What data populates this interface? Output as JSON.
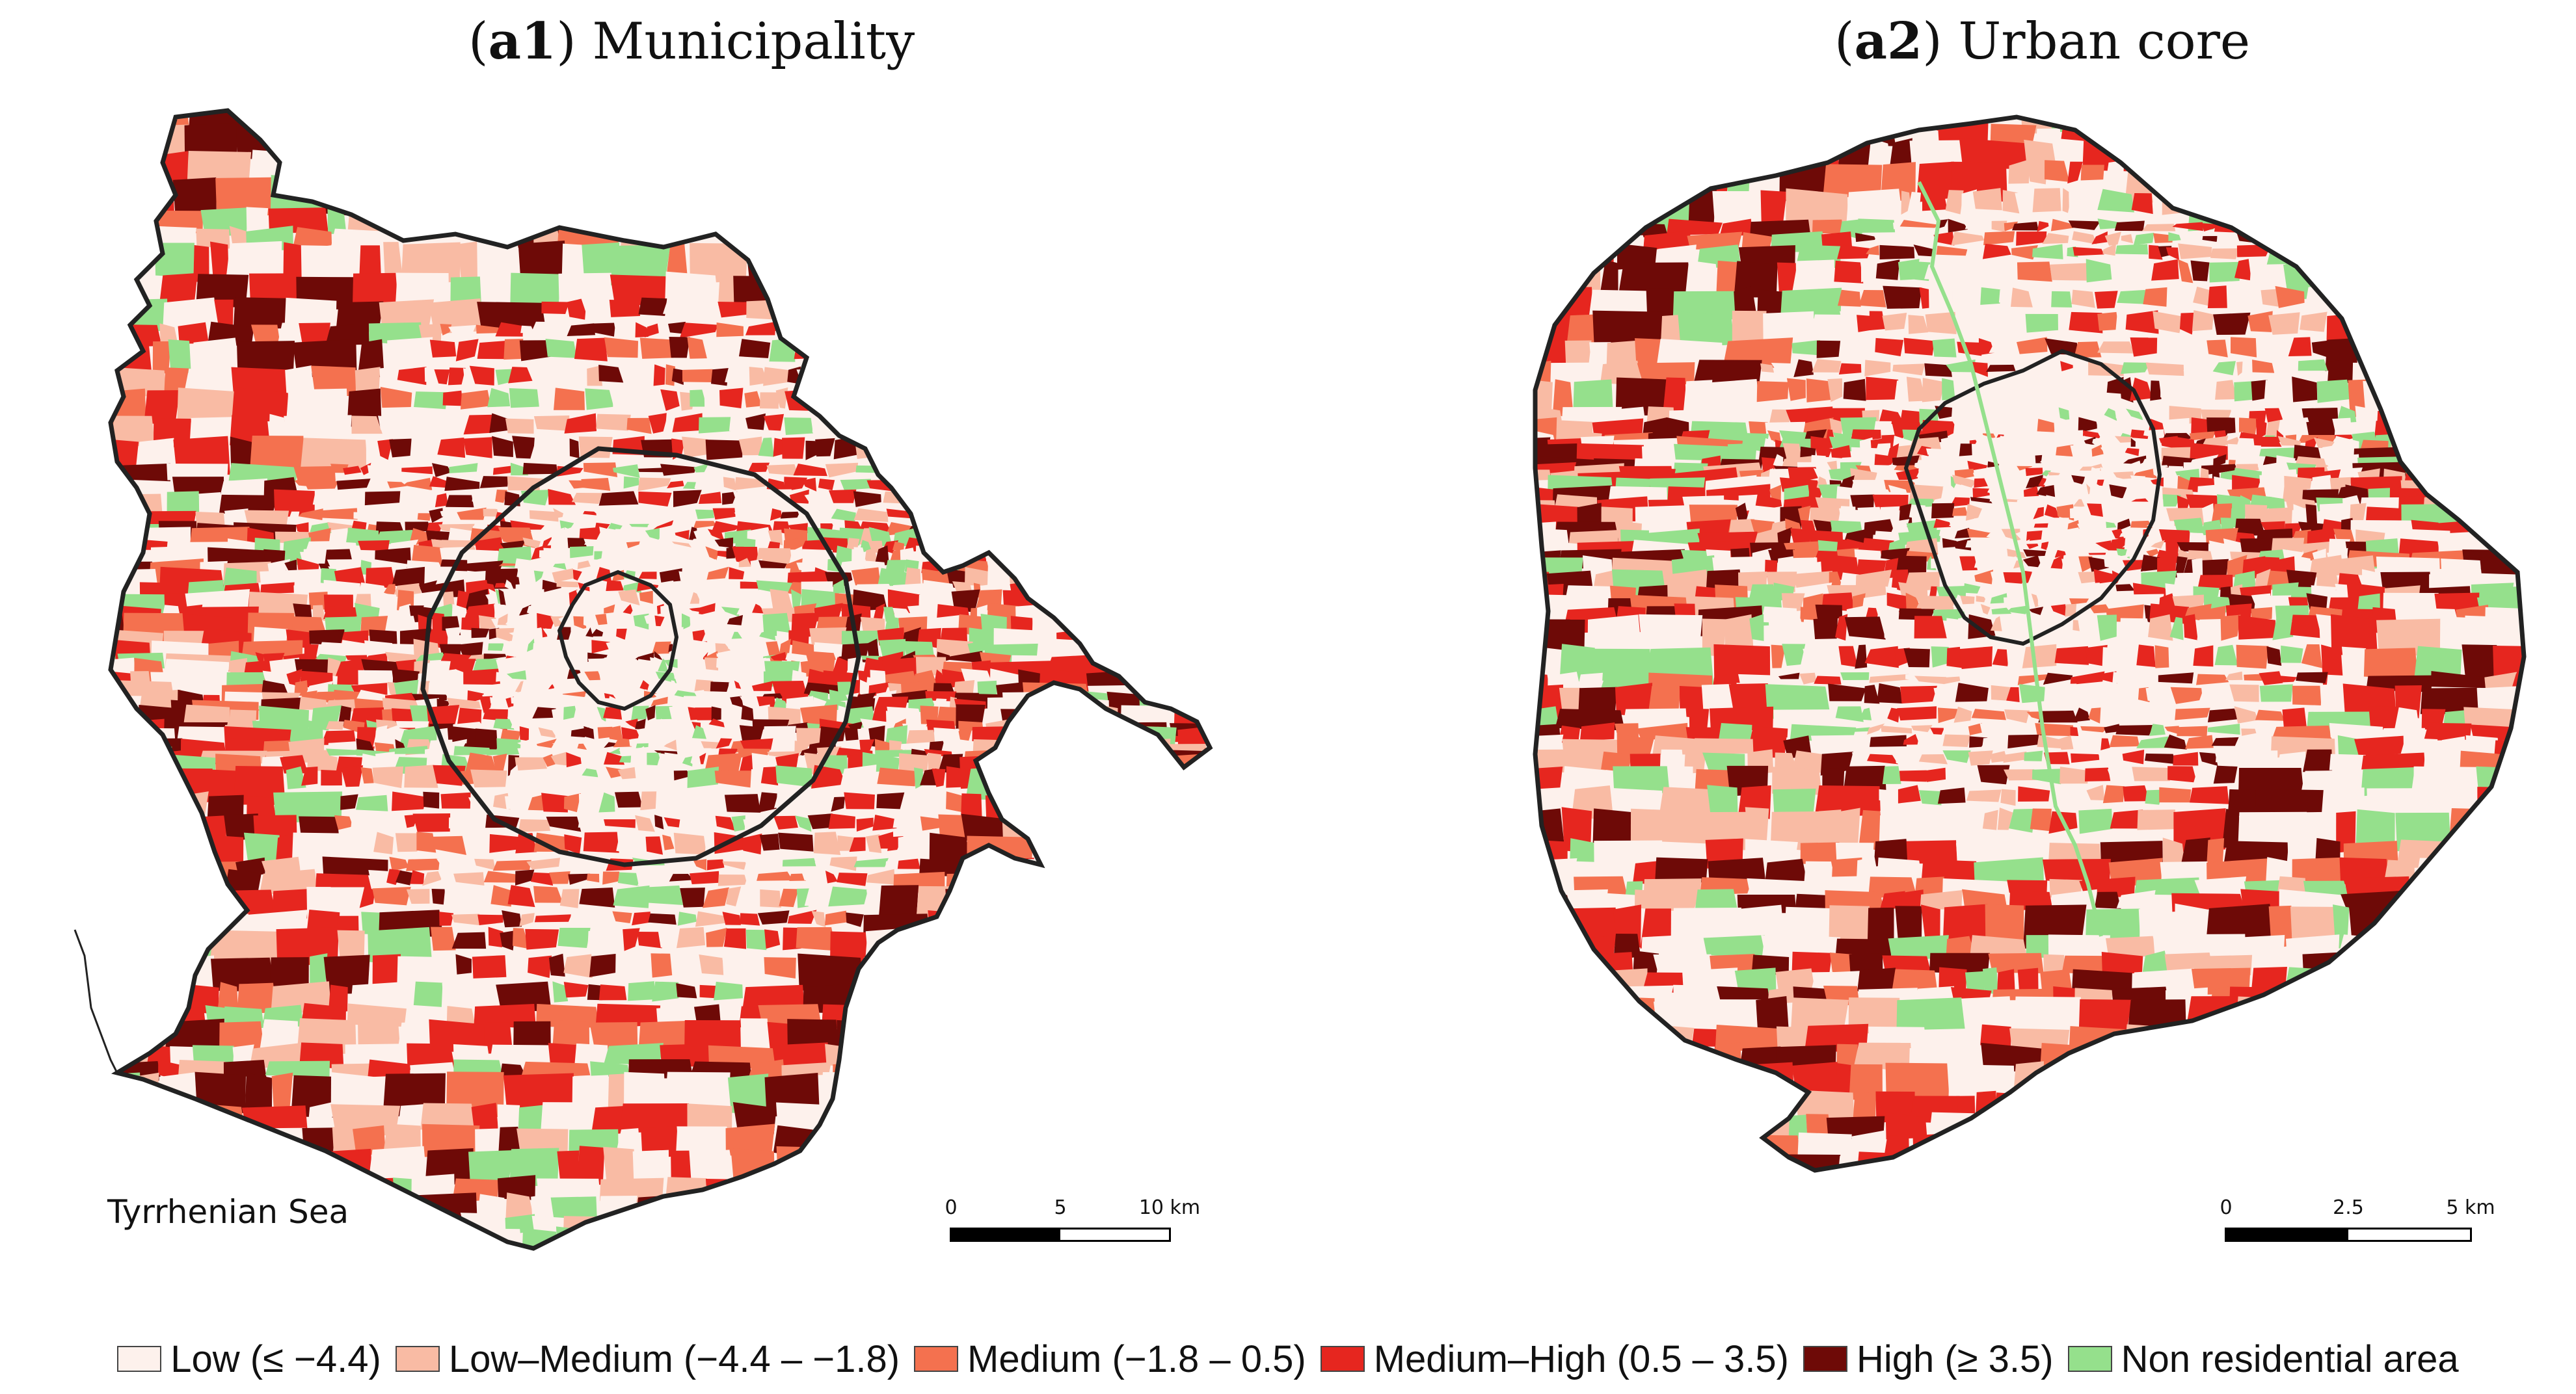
{
  "panels": {
    "a1": {
      "letter": "a1",
      "title": "Municipality"
    },
    "a2": {
      "letter": "a2",
      "title": "Urban core"
    }
  },
  "sea_label": "Tyrrhenian Sea",
  "scalebars": {
    "a1": {
      "ticks": [
        "0",
        "5",
        "10 km"
      ]
    },
    "a2": {
      "ticks": [
        "0",
        "2.5",
        "5 km"
      ]
    }
  },
  "legend": [
    {
      "label": "Low (≤ −4.4)",
      "color": "#fdf1ec"
    },
    {
      "label": "Low–Medium (−4.4 – −1.8)",
      "color": "#f9bba4"
    },
    {
      "label": "Medium (−1.8 – 0.5)",
      "color": "#f4714f"
    },
    {
      "label": "Medium–High (0.5 – 3.5)",
      "color": "#e6261f"
    },
    {
      "label": "High (≥ 3.5)",
      "color": "#6e0a07"
    },
    {
      "label": "Non residential area",
      "color": "#95e08c"
    }
  ]
}
